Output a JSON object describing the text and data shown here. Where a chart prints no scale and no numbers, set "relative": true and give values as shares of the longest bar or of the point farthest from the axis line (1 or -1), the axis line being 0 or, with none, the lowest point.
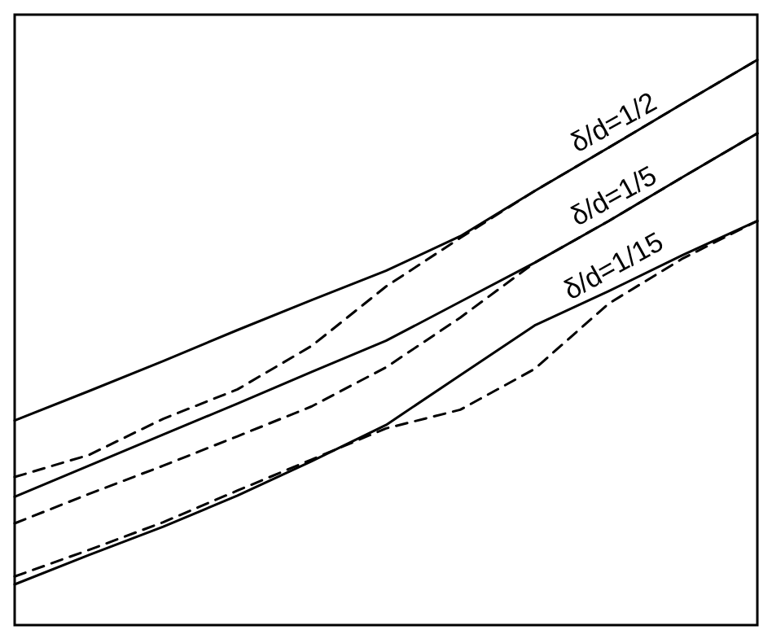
{
  "chart_data": {
    "type": "line",
    "relative": true,
    "categories": [
      null,
      null,
      null,
      null,
      null,
      null,
      null,
      null,
      null,
      null,
      null
    ],
    "series": [
      {
        "name": "δ/d=1/2",
        "color": "#000000",
        "line_style": "solid",
        "values": [
          0.362,
          0.414,
          0.467,
          0.522,
          0.575,
          0.627,
          0.688,
          0.768,
          0.845,
          0.923,
          1
        ]
      },
      {
        "color": "#000000",
        "line_style": "dashed",
        "values": [
          0.262,
          0.301,
          0.365,
          0.417,
          0.494,
          0.599,
          0.685,
          0.768,
          0.845,
          0.923,
          1
        ]
      },
      {
        "name": "δ/d=1/5",
        "color": "#000000",
        "line_style": "solid",
        "values": [
          0.227,
          0.282,
          0.337,
          0.392,
          0.448,
          0.503,
          0.572,
          0.641,
          0.715,
          0.793,
          0.87
        ]
      },
      {
        "color": "#000000",
        "line_style": "dashed",
        "values": [
          0.18,
          0.232,
          0.282,
          0.334,
          0.387,
          0.456,
          0.544,
          0.641,
          0.715,
          0.793,
          0.87
        ]
      },
      {
        "name": "δ/d=1/15",
        "color": "#000000",
        "line_style": "solid",
        "values": [
          0.072,
          0.124,
          0.174,
          0.229,
          0.29,
          0.354,
          0.442,
          0.53,
          0.591,
          0.655,
          0.715
        ]
      },
      {
        "color": "#000000",
        "line_style": "dashed",
        "values": [
          0.086,
          0.133,
          0.182,
          0.238,
          0.293,
          0.348,
          0.381,
          0.453,
          0.569,
          0.649,
          0.715
        ]
      }
    ]
  }
}
